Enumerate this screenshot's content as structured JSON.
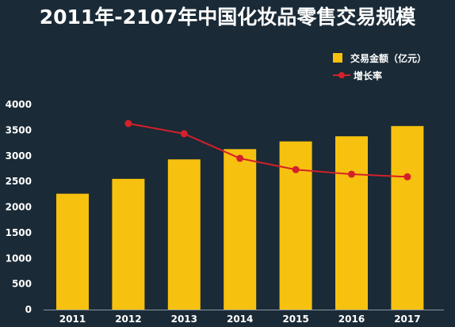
{
  "chart_data": {
    "type": "bar",
    "title": "2011年-2107年中国化妆品零售交易规模",
    "categories": [
      "2011",
      "2012",
      "2013",
      "2014",
      "2015",
      "2016",
      "2017"
    ],
    "series": [
      {
        "name": "交易金额（亿元）",
        "type": "bar",
        "color": "#f7c10f",
        "values": [
          2260,
          2550,
          2930,
          3130,
          3280,
          3380,
          3580
        ]
      },
      {
        "name": "增长率",
        "type": "line",
        "color": "#d4202a",
        "values": [
          null,
          3630,
          3430,
          2950,
          2730,
          2640,
          2590
        ]
      }
    ],
    "yticks": [
      "0",
      "500",
      "1000",
      "1500",
      "2000",
      "2500",
      "3000",
      "3500",
      "4000"
    ],
    "ylim": [
      0,
      4000
    ],
    "grid": false,
    "legend_position": "top-right",
    "text_color": "#ffffff",
    "background": "#1a2a36"
  }
}
